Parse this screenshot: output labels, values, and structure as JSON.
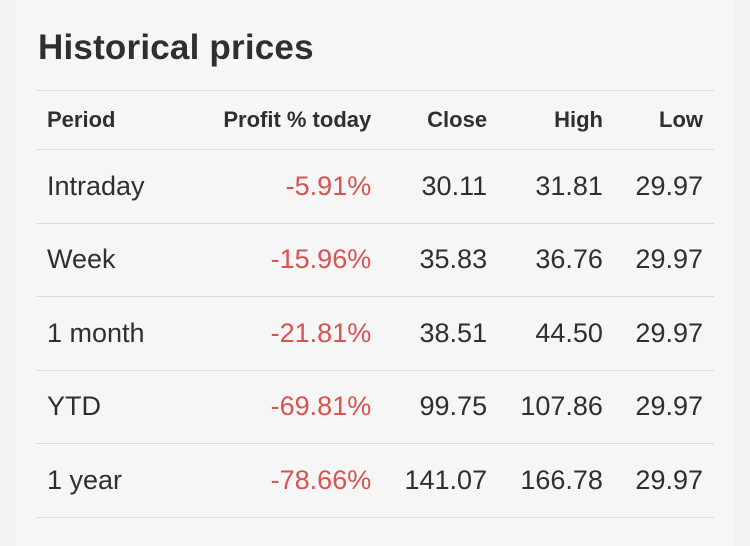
{
  "title": "Historical prices",
  "colors": {
    "negative": "#d9534f",
    "text": "#2f2f2f",
    "divider": "#dcdcdc"
  },
  "columns": {
    "period": "Period",
    "profit": "Profit % today",
    "close": "Close",
    "high": "High",
    "low": "Low"
  },
  "rows": [
    {
      "period": "Intraday",
      "profit": "-5.91%",
      "close": "30.11",
      "high": "31.81",
      "low": "29.97"
    },
    {
      "period": "Week",
      "profit": "-15.96%",
      "close": "35.83",
      "high": "36.76",
      "low": "29.97"
    },
    {
      "period": "1 month",
      "profit": "-21.81%",
      "close": "38.51",
      "high": "44.50",
      "low": "29.97"
    },
    {
      "period": "YTD",
      "profit": "-69.81%",
      "close": "99.75",
      "high": "107.86",
      "low": "29.97"
    },
    {
      "period": "1 year",
      "profit": "-78.66%",
      "close": "141.07",
      "high": "166.78",
      "low": "29.97"
    }
  ]
}
